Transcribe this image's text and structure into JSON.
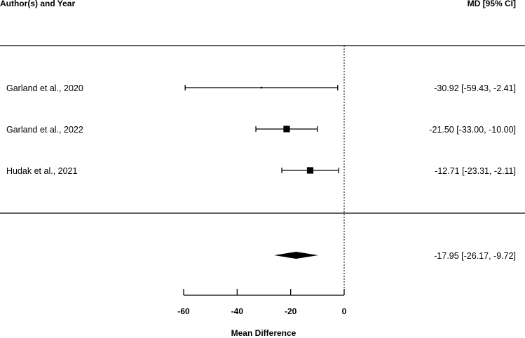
{
  "chart_data": {
    "type": "forest",
    "header_left": "Author(s) and Year",
    "header_right": "MD [95% CI]",
    "xlabel": "Mean Difference",
    "xlim": [
      -60,
      0
    ],
    "xticks": [
      "-60",
      "-40",
      "-20",
      "0"
    ],
    "reference_line_x": 0,
    "studies": [
      {
        "label": "Garland et al., 2020",
        "md": -30.92,
        "lo": -59.43,
        "hi": -2.41,
        "ci_text": "-30.92 [-59.43,  -2.41]",
        "weight": 0.05
      },
      {
        "label": "Garland et al., 2022",
        "md": -21.5,
        "lo": -33.0,
        "hi": -10.0,
        "ci_text": "-21.50 [-33.00, -10.00]",
        "weight": 0.9
      },
      {
        "label": "Hudak et al., 2021",
        "md": -12.71,
        "lo": -23.31,
        "hi": -2.11,
        "ci_text": "-12.71 [-23.31,  -2.11]",
        "weight": 0.9
      }
    ],
    "summary": {
      "md": -17.95,
      "lo": -26.17,
      "hi": -9.72,
      "ci_text": "-17.95 [-26.17,  -9.72]"
    }
  }
}
